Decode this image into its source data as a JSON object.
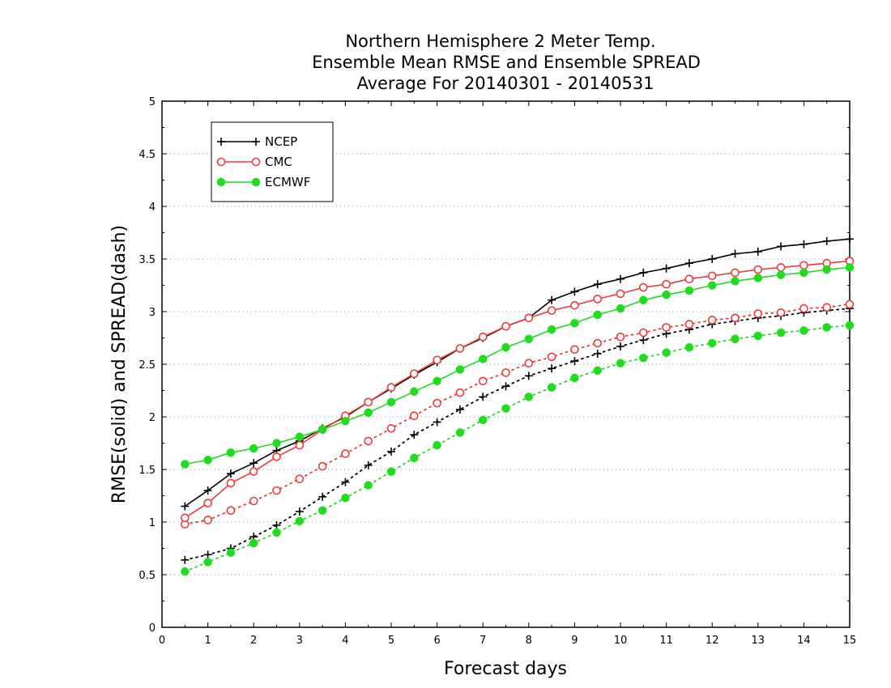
{
  "chart_data": {
    "type": "line",
    "title": [
      "Northern Hemisphere 2 Meter Temp.",
      "Ensemble Mean RMSE and Ensemble SPREAD",
      "Average For 20140301 - 20140531"
    ],
    "xlabel": "Forecast days",
    "ylabel": "RMSE(solid) and SPREAD(dash)",
    "xlim": [
      0,
      15
    ],
    "ylim": [
      0,
      5
    ],
    "xticks": [
      0,
      1,
      2,
      3,
      4,
      5,
      6,
      7,
      8,
      9,
      10,
      11,
      12,
      13,
      14,
      15
    ],
    "yticks": [
      0,
      0.5,
      1,
      1.5,
      2,
      2.5,
      3,
      3.5,
      4,
      4.5,
      5
    ],
    "grid": "horizontal-dotted",
    "legend_position": "top-left",
    "x": [
      0.5,
      1,
      1.5,
      2,
      2.5,
      3,
      3.5,
      4,
      4.5,
      5,
      5.5,
      6,
      6.5,
      7,
      7.5,
      8,
      8.5,
      9,
      9.5,
      10,
      10.5,
      11,
      11.5,
      12,
      12.5,
      13,
      13.5,
      14,
      14.5,
      15
    ],
    "series": [
      {
        "name": "NCEP",
        "metric": "RMSE",
        "style": "solid",
        "color": "#000000",
        "marker": "plus",
        "values": [
          1.15,
          1.3,
          1.46,
          1.56,
          1.68,
          1.77,
          1.89,
          2.0,
          2.14,
          2.27,
          2.4,
          2.52,
          2.65,
          2.75,
          2.86,
          2.94,
          3.11,
          3.19,
          3.26,
          3.31,
          3.37,
          3.41,
          3.46,
          3.5,
          3.55,
          3.57,
          3.62,
          3.64,
          3.67,
          3.69
        ]
      },
      {
        "name": "CMC",
        "metric": "RMSE",
        "style": "solid",
        "color": "#ef3a3a",
        "marker": "open-circle",
        "values": [
          1.04,
          1.18,
          1.37,
          1.48,
          1.62,
          1.73,
          1.88,
          2.01,
          2.14,
          2.28,
          2.41,
          2.54,
          2.65,
          2.76,
          2.86,
          2.94,
          3.01,
          3.06,
          3.12,
          3.17,
          3.23,
          3.26,
          3.31,
          3.34,
          3.37,
          3.4,
          3.42,
          3.44,
          3.46,
          3.48
        ]
      },
      {
        "name": "ECMWF",
        "metric": "RMSE",
        "style": "solid",
        "color": "#1fdc1f",
        "marker": "filled-circle",
        "values": [
          1.55,
          1.59,
          1.66,
          1.7,
          1.75,
          1.81,
          1.88,
          1.96,
          2.04,
          2.14,
          2.24,
          2.34,
          2.45,
          2.55,
          2.66,
          2.74,
          2.83,
          2.89,
          2.97,
          3.03,
          3.11,
          3.16,
          3.2,
          3.25,
          3.29,
          3.32,
          3.35,
          3.37,
          3.4,
          3.42
        ]
      },
      {
        "name": "NCEP",
        "metric": "SPREAD",
        "style": "dashed",
        "color": "#000000",
        "marker": "plus",
        "values": [
          0.64,
          0.69,
          0.75,
          0.86,
          0.97,
          1.1,
          1.24,
          1.38,
          1.54,
          1.67,
          1.83,
          1.95,
          2.07,
          2.19,
          2.29,
          2.39,
          2.46,
          2.53,
          2.6,
          2.67,
          2.73,
          2.79,
          2.83,
          2.88,
          2.91,
          2.94,
          2.96,
          2.99,
          3.01,
          3.03
        ]
      },
      {
        "name": "CMC",
        "metric": "SPREAD",
        "style": "dashed",
        "color": "#ef3a3a",
        "marker": "open-circle",
        "values": [
          0.98,
          1.02,
          1.11,
          1.2,
          1.3,
          1.41,
          1.53,
          1.65,
          1.77,
          1.89,
          2.01,
          2.13,
          2.23,
          2.34,
          2.42,
          2.51,
          2.57,
          2.64,
          2.7,
          2.76,
          2.8,
          2.85,
          2.88,
          2.92,
          2.94,
          2.98,
          2.99,
          3.03,
          3.04,
          3.07
        ]
      },
      {
        "name": "ECMWF",
        "metric": "SPREAD",
        "style": "dashed",
        "color": "#1fdc1f",
        "marker": "filled-circle",
        "values": [
          0.53,
          0.62,
          0.71,
          0.8,
          0.9,
          1.01,
          1.11,
          1.23,
          1.35,
          1.48,
          1.61,
          1.73,
          1.85,
          1.97,
          2.08,
          2.19,
          2.28,
          2.37,
          2.44,
          2.51,
          2.56,
          2.61,
          2.66,
          2.7,
          2.74,
          2.77,
          2.8,
          2.82,
          2.85,
          2.87
        ]
      }
    ],
    "legend": [
      {
        "label": "NCEP",
        "color": "#000000",
        "marker": "plus"
      },
      {
        "label": "CMC",
        "color": "#ef3a3a",
        "marker": "open-circle"
      },
      {
        "label": "ECMWF",
        "color": "#1fdc1f",
        "marker": "filled-circle"
      }
    ]
  }
}
